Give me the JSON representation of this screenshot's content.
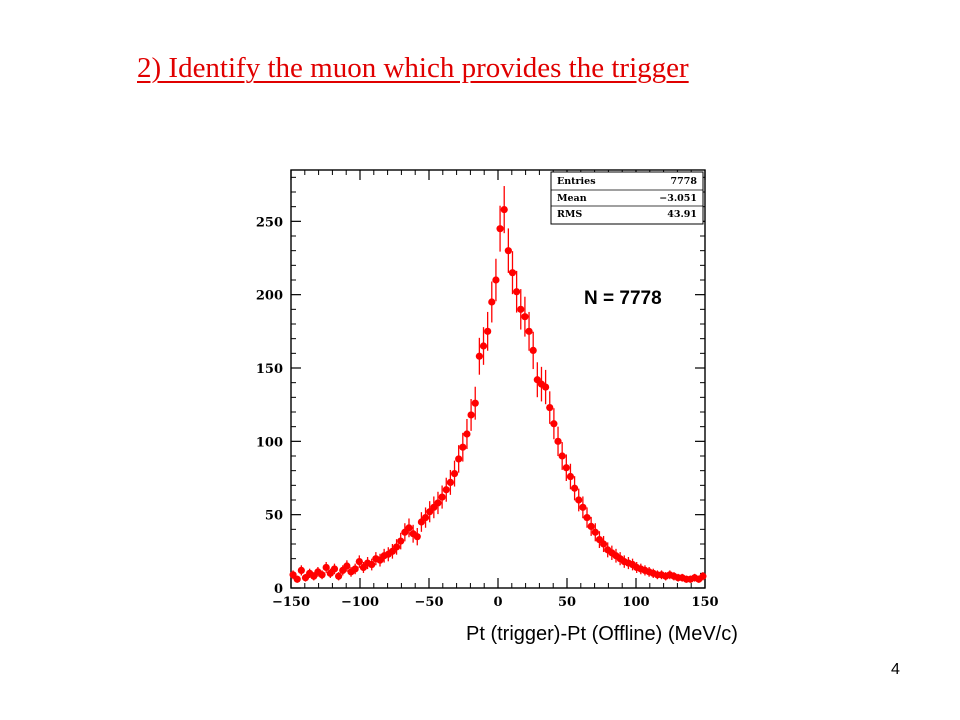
{
  "slide": {
    "title": "2) Identify the muon which provides the trigger",
    "page_number": "4"
  },
  "colors": {
    "title": "#e00000",
    "markers": "#ff0000",
    "axis": "#000000",
    "background": "#ffffff"
  },
  "chart_data": {
    "type": "scatter",
    "title": "",
    "xlabel": "Pt  (trigger)-Pt (Offline) (MeV/c)",
    "ylabel": "",
    "xlim": [
      -150,
      150
    ],
    "ylim": [
      0,
      285
    ],
    "x_ticks": [
      -150,
      -100,
      -50,
      0,
      50,
      100,
      150
    ],
    "x_tick_labels": [
      "−150",
      "−100",
      "−50",
      "0",
      "50",
      "100",
      "150"
    ],
    "y_ticks": [
      0,
      50,
      100,
      150,
      200,
      250
    ],
    "y_tick_labels": [
      "0",
      "50",
      "100",
      "150",
      "200",
      "250"
    ],
    "stats_box": {
      "rows": [
        {
          "label": "Entries",
          "value": "7778"
        },
        {
          "label": "Mean",
          "value": "−3.051"
        },
        {
          "label": "RMS",
          "value": "43.91"
        }
      ]
    },
    "annotation": "N = 7778",
    "series": [
      {
        "marker": "filled circle with error bars",
        "x": [
          -148.5,
          -145.5,
          -142.5,
          -139.5,
          -136.5,
          -133.5,
          -130.5,
          -127.5,
          -124.5,
          -121.5,
          -118.5,
          -115.5,
          -112.5,
          -109.5,
          -106.5,
          -103.5,
          -100.5,
          -97.5,
          -94.5,
          -91.5,
          -88.5,
          -85.5,
          -82.5,
          -79.5,
          -76.5,
          -73.5,
          -70.5,
          -67.5,
          -64.5,
          -61.5,
          -58.5,
          -55.5,
          -52.5,
          -49.5,
          -46.5,
          -43.5,
          -40.5,
          -37.5,
          -34.5,
          -31.5,
          -28.5,
          -25.5,
          -22.5,
          -19.5,
          -16.5,
          -13.5,
          -10.5,
          -7.5,
          -4.5,
          -1.5,
          1.5,
          4.5,
          7.5,
          10.5,
          13.5,
          16.5,
          19.5,
          22.5,
          25.5,
          28.5,
          31.5,
          34.5,
          37.5,
          40.5,
          43.5,
          46.5,
          49.5,
          52.5,
          55.5,
          58.5,
          61.5,
          64.5,
          67.5,
          70.5,
          73.5,
          76.5,
          79.5,
          82.5,
          85.5,
          88.5,
          91.5,
          94.5,
          97.5,
          100.5,
          103.5,
          106.5,
          109.5,
          112.5,
          115.5,
          118.5,
          121.5,
          124.5,
          127.5,
          130.5,
          133.5,
          136.5,
          139.5,
          142.5,
          145.5,
          148.5
        ],
        "y": [
          9,
          6,
          12,
          7,
          10,
          8,
          11,
          9,
          14,
          10,
          13,
          8,
          12,
          15,
          11,
          13,
          18,
          14,
          17,
          16,
          20,
          19,
          22,
          23,
          25,
          28,
          32,
          38,
          41,
          37,
          35,
          45,
          48,
          52,
          55,
          58,
          62,
          67,
          72,
          78,
          88,
          96,
          105,
          118,
          126,
          158,
          165,
          175,
          195,
          210,
          245,
          258,
          230,
          215,
          202,
          190,
          185,
          175,
          162,
          142,
          139,
          137,
          123,
          112,
          100,
          90,
          82,
          76,
          68,
          60,
          55,
          48,
          42,
          38,
          33,
          30,
          26,
          24,
          22,
          20,
          18,
          17,
          16,
          14,
          13,
          12,
          11,
          10,
          9,
          9,
          8,
          9,
          8,
          7,
          7,
          6,
          6,
          7,
          6,
          8
        ]
      }
    ]
  }
}
